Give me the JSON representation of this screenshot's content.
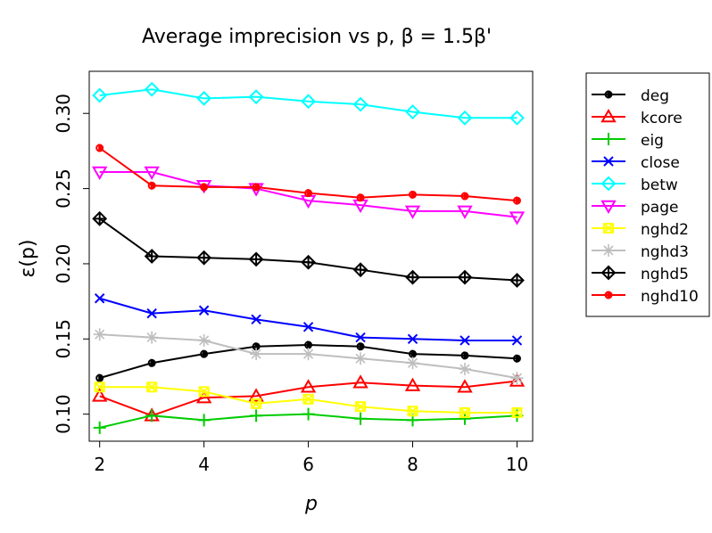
{
  "chart_data": {
    "type": "line",
    "title": "Average imprecision vs p, β = 1.5β'",
    "xlabel": "p",
    "ylabel": "ε(p)",
    "x": [
      2,
      3,
      4,
      5,
      6,
      7,
      8,
      9,
      10
    ],
    "xlim": [
      1.8,
      10.3
    ],
    "ylim": [
      0.082,
      0.328
    ],
    "xticks": [
      "2",
      "4",
      "6",
      "8",
      "10"
    ],
    "yticks": [
      "0.10",
      "0.15",
      "0.20",
      "0.25",
      "0.30"
    ],
    "legend_position": "outside-right",
    "series": [
      {
        "name": "deg",
        "color": "#000000",
        "marker": "half-circle",
        "values": [
          0.124,
          0.134,
          0.14,
          0.145,
          0.146,
          0.145,
          0.14,
          0.139,
          0.137
        ]
      },
      {
        "name": "kcore",
        "color": "#ff0000",
        "marker": "triangle-up",
        "values": [
          0.112,
          0.099,
          0.111,
          0.112,
          0.118,
          0.121,
          0.119,
          0.118,
          0.122
        ]
      },
      {
        "name": "eig",
        "color": "#00cc00",
        "marker": "plus",
        "values": [
          0.091,
          0.099,
          0.096,
          0.099,
          0.1,
          0.097,
          0.096,
          0.097,
          0.099
        ]
      },
      {
        "name": "close",
        "color": "#0000ff",
        "marker": "cross",
        "values": [
          0.177,
          0.167,
          0.169,
          0.163,
          0.158,
          0.151,
          0.15,
          0.149,
          0.149
        ]
      },
      {
        "name": "betw",
        "color": "#00ffff",
        "marker": "diamond",
        "values": [
          0.312,
          0.316,
          0.31,
          0.311,
          0.308,
          0.306,
          0.301,
          0.297,
          0.297
        ]
      },
      {
        "name": "page",
        "color": "#ff00ff",
        "marker": "triangle-down",
        "values": [
          0.261,
          0.261,
          0.252,
          0.25,
          0.242,
          0.239,
          0.235,
          0.235,
          0.231
        ]
      },
      {
        "name": "nghd2",
        "color": "#ffff00",
        "marker": "square-cross",
        "values": [
          0.118,
          0.118,
          0.115,
          0.107,
          0.11,
          0.105,
          0.102,
          0.101,
          0.101
        ]
      },
      {
        "name": "nghd3",
        "color": "#bebebe",
        "marker": "asterisk",
        "values": [
          0.153,
          0.151,
          0.149,
          0.14,
          0.14,
          0.137,
          0.134,
          0.13,
          0.124
        ]
      },
      {
        "name": "nghd5",
        "color": "#000000",
        "marker": "diamond-plus",
        "values": [
          0.23,
          0.205,
          0.204,
          0.203,
          0.201,
          0.196,
          0.191,
          0.191,
          0.189
        ]
      },
      {
        "name": "nghd10",
        "color": "#ff0000",
        "marker": "half-circle",
        "values": [
          0.277,
          0.252,
          0.251,
          0.251,
          0.247,
          0.244,
          0.246,
          0.245,
          0.242
        ]
      }
    ]
  }
}
